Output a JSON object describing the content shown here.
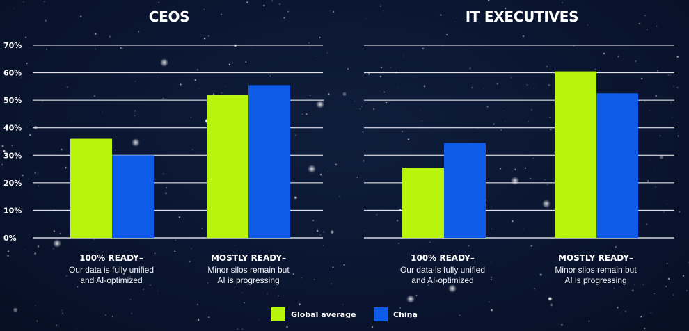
{
  "colors": {
    "global": "#b9f40d",
    "china": "#0e5be8",
    "grid": "#ffffff",
    "background": "#0a1530"
  },
  "legend": {
    "global_label": "Global average",
    "china_label": "China"
  },
  "chart_data": [
    {
      "type": "bar",
      "title": "CEOS",
      "categories": [
        "100% READY–",
        "MOSTLY READY–"
      ],
      "category_subtitles": [
        "Our data is fully unified and AI-optimized",
        "Minor silos remain but AI is progressing"
      ],
      "category_sub_lines": [
        [
          "Our data is fully unified",
          "and AI-optimized"
        ],
        [
          "Minor silos remain but",
          "AI is progressing"
        ]
      ],
      "series": [
        {
          "name": "Global average",
          "values": [
            36,
            52
          ]
        },
        {
          "name": "China",
          "values": [
            30,
            55.5
          ]
        }
      ],
      "ylim": [
        0,
        70
      ],
      "yticks": [
        "0%",
        "10%",
        "20%",
        "30%",
        "40%",
        "50%",
        "60%",
        "70%"
      ],
      "grid": true
    },
    {
      "type": "bar",
      "title": "IT EXECUTIVES",
      "categories": [
        "100% READY–",
        "MOSTLY READY–"
      ],
      "category_subtitles": [
        "Our data is fully unified and AI-optimized",
        "Minor silos remain but AI is progressing"
      ],
      "category_sub_lines": [
        [
          "Our data is fully unified",
          "and AI-optimized"
        ],
        [
          "Minor silos remain but",
          "AI is progressing"
        ]
      ],
      "series": [
        {
          "name": "Global average",
          "values": [
            25.5,
            60.5
          ]
        },
        {
          "name": "China",
          "values": [
            34.5,
            52.5
          ]
        }
      ],
      "ylim": [
        0,
        70
      ],
      "yticks": [],
      "grid": true
    }
  ]
}
